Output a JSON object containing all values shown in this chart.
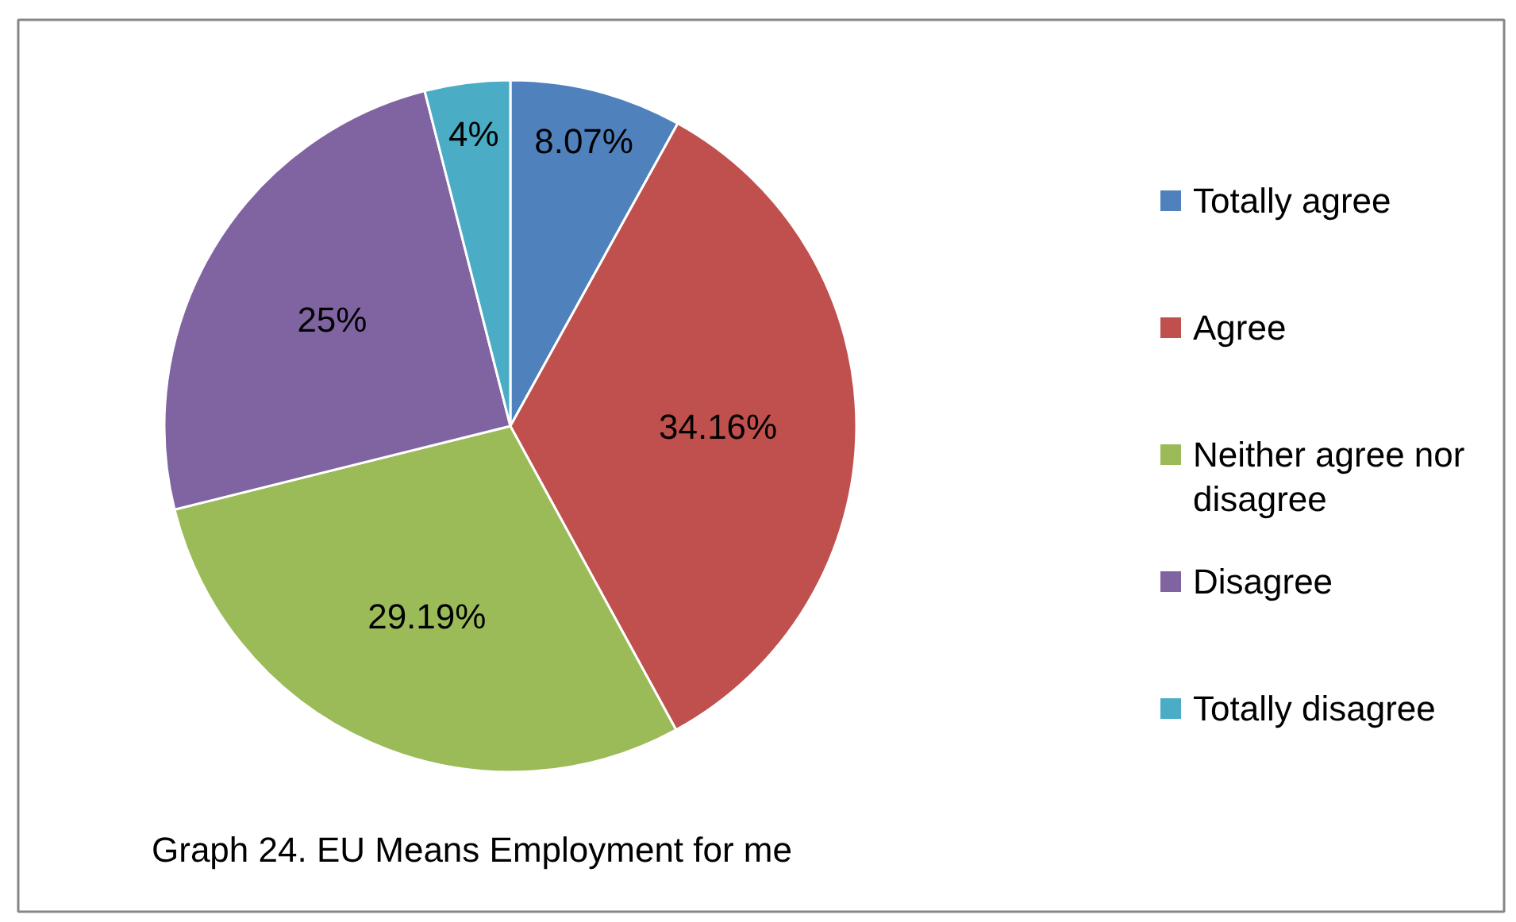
{
  "chart_data": {
    "type": "pie",
    "title": "Graph 24. EU Means Employment for me",
    "categories": [
      "Totally agree",
      "Agree",
      "Neither agree nor disagree",
      "Disagree",
      "Totally disagree"
    ],
    "values": [
      8.07,
      34.16,
      29.19,
      25,
      4
    ],
    "value_labels": [
      "8.07%",
      "34.16%",
      "29.19%",
      "25%",
      "4%"
    ],
    "colors": [
      "#4f81bd",
      "#c0504d",
      "#9bbb59",
      "#8064a2",
      "#4bacc6"
    ],
    "legend": "right"
  }
}
